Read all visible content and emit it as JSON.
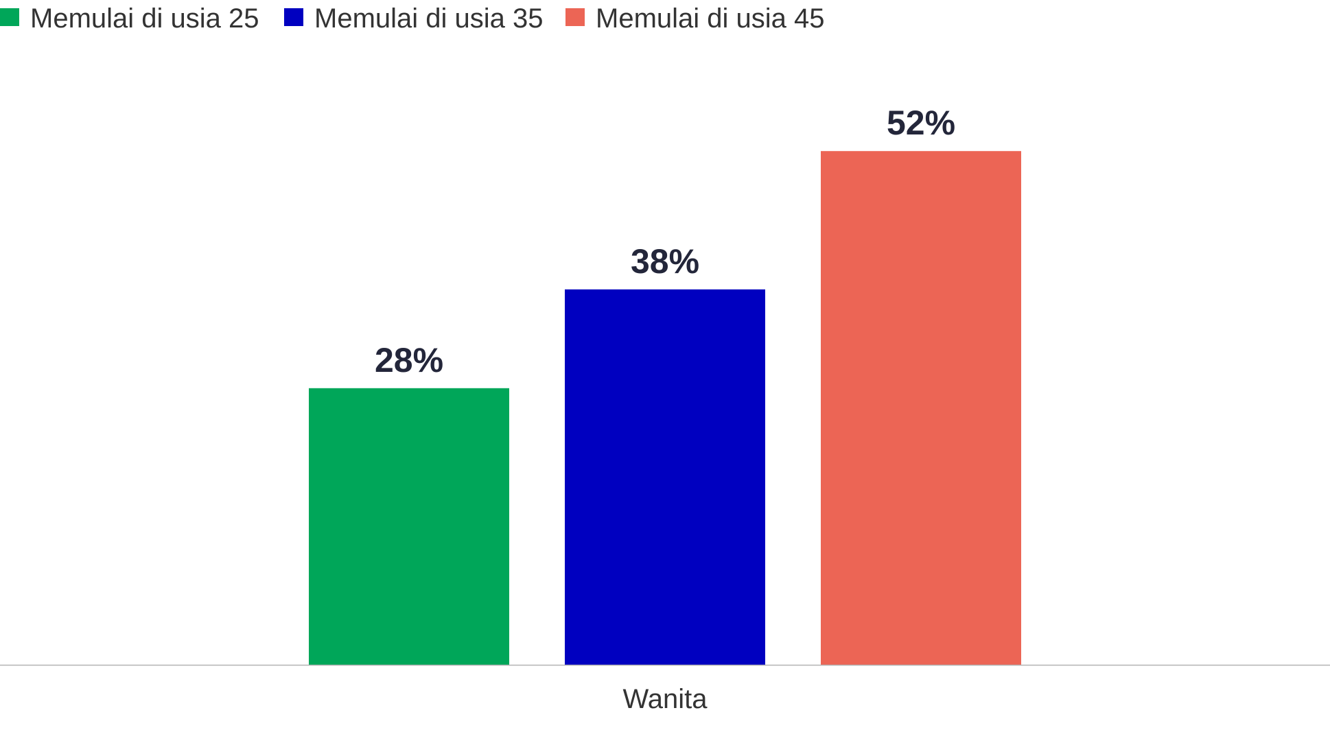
{
  "chart_data": {
    "type": "bar",
    "categories": [
      "Wanita"
    ],
    "series": [
      {
        "name": "Memulai di usia 25",
        "values": [
          28
        ],
        "color": "#00a659",
        "label": "28%"
      },
      {
        "name": "Memulai di usia 35",
        "values": [
          38
        ],
        "color": "#0000c0",
        "label": "38%"
      },
      {
        "name": "Memulai di usia 45",
        "values": [
          52
        ],
        "color": "#ec6555",
        "label": "52%"
      }
    ],
    "value_suffix": "%",
    "ylim": [
      0,
      60
    ],
    "grid": false,
    "legend_position": "top-left",
    "axis_color": "#b3b3b3"
  }
}
